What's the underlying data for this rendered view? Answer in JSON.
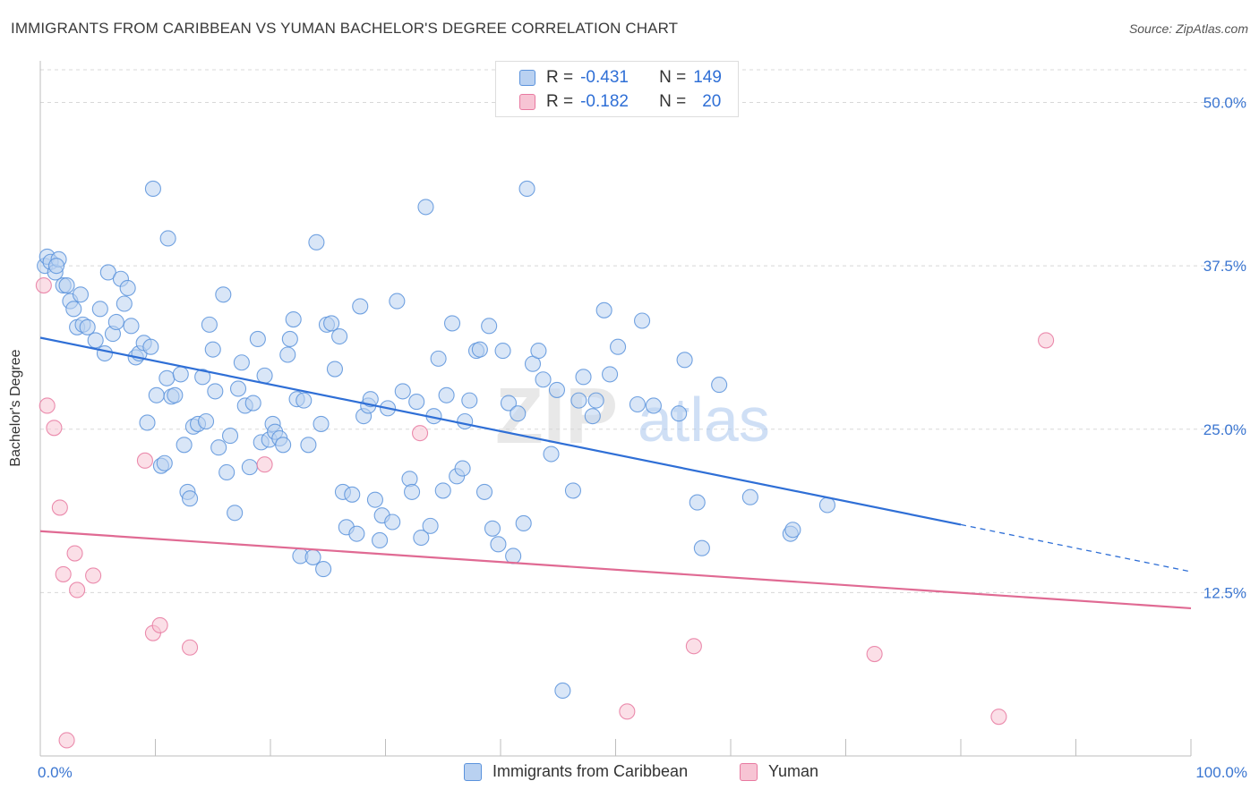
{
  "header": {
    "title": "IMMIGRANTS FROM CARIBBEAN VS YUMAN BACHELOR'S DEGREE CORRELATION CHART",
    "source": "Source: ZipAtlas.com"
  },
  "legend": {
    "rows": [
      {
        "r_label": "R =",
        "r_value": "-0.431",
        "n_label": "N =",
        "n_value": "149"
      },
      {
        "r_label": "R =",
        "r_value": "-0.182",
        "n_label": "N =",
        "n_value": "20"
      }
    ]
  },
  "watermark": {
    "zip": "ZIP",
    "atlas": "atlas"
  },
  "colors": {
    "blue": "#5b93dc",
    "blue_fill": "#b9d1f1",
    "blue_line": "#2f6fd6",
    "pink": "#e879a0",
    "pink_fill": "#f7c4d4",
    "pink_line": "#e06a93",
    "axis_label": "#3b76d1",
    "grid": "#d8d8d8"
  },
  "chart_data": {
    "type": "scatter",
    "title": "IMMIGRANTS FROM CARIBBEAN VS YUMAN BACHELOR'S DEGREE CORRELATION CHART",
    "xlabel": "",
    "ylabel": "Bachelor's Degree",
    "xlim": [
      0,
      100
    ],
    "ylim": [
      0,
      52.5
    ],
    "x_tick_labels": [
      "0.0%",
      "100.0%"
    ],
    "y_ticks": [
      12.5,
      25.0,
      37.5,
      50.0
    ],
    "y_tick_labels": [
      "12.5%",
      "25.0%",
      "37.5%",
      "50.0%"
    ],
    "grid": true,
    "legend_position": "top-center",
    "series": [
      {
        "name": "Immigrants from Caribbean",
        "color": "#5b93dc",
        "trend": {
          "x": [
            0,
            80
          ],
          "y": [
            32.0,
            17.7
          ],
          "dashed_to": [
            100,
            14.1
          ]
        },
        "points": [
          [
            0.4,
            37.5
          ],
          [
            0.6,
            38.2
          ],
          [
            0.9,
            37.8
          ],
          [
            1.3,
            37.0
          ],
          [
            1.6,
            38.0
          ],
          [
            2.0,
            36.0
          ],
          [
            2.3,
            36.0
          ],
          [
            2.6,
            34.8
          ],
          [
            2.9,
            34.2
          ],
          [
            3.2,
            32.8
          ],
          [
            3.5,
            35.3
          ],
          [
            3.7,
            33.0
          ],
          [
            4.1,
            32.8
          ],
          [
            4.8,
            31.8
          ],
          [
            5.2,
            34.2
          ],
          [
            5.6,
            30.8
          ],
          [
            5.9,
            37.0
          ],
          [
            6.3,
            32.3
          ],
          [
            6.6,
            33.2
          ],
          [
            7.0,
            36.5
          ],
          [
            7.3,
            34.6
          ],
          [
            7.6,
            35.8
          ],
          [
            7.9,
            32.9
          ],
          [
            8.3,
            30.5
          ],
          [
            8.6,
            30.8
          ],
          [
            9.0,
            31.6
          ],
          [
            9.3,
            25.5
          ],
          [
            9.6,
            31.3
          ],
          [
            10.1,
            27.6
          ],
          [
            10.5,
            22.2
          ],
          [
            10.8,
            22.4
          ],
          [
            11.0,
            28.9
          ],
          [
            11.4,
            27.5
          ],
          [
            11.7,
            27.6
          ],
          [
            12.2,
            29.2
          ],
          [
            12.5,
            23.8
          ],
          [
            12.8,
            20.2
          ],
          [
            13.0,
            19.7
          ],
          [
            13.3,
            25.2
          ],
          [
            13.7,
            25.4
          ],
          [
            14.1,
            29.0
          ],
          [
            14.4,
            25.6
          ],
          [
            14.7,
            33.0
          ],
          [
            15.0,
            31.1
          ],
          [
            15.2,
            27.9
          ],
          [
            15.5,
            23.6
          ],
          [
            15.9,
            35.3
          ],
          [
            16.2,
            21.7
          ],
          [
            16.5,
            24.5
          ],
          [
            16.9,
            18.6
          ],
          [
            17.2,
            28.1
          ],
          [
            17.5,
            30.1
          ],
          [
            17.8,
            26.8
          ],
          [
            18.2,
            22.1
          ],
          [
            18.5,
            27.0
          ],
          [
            18.9,
            31.9
          ],
          [
            19.2,
            24.0
          ],
          [
            19.5,
            29.1
          ],
          [
            19.9,
            24.2
          ],
          [
            20.2,
            25.4
          ],
          [
            20.4,
            24.8
          ],
          [
            20.8,
            24.3
          ],
          [
            21.1,
            23.8
          ],
          [
            21.5,
            30.7
          ],
          [
            21.7,
            31.9
          ],
          [
            22.0,
            33.4
          ],
          [
            22.3,
            27.3
          ],
          [
            22.6,
            15.3
          ],
          [
            22.9,
            27.2
          ],
          [
            23.3,
            23.8
          ],
          [
            23.7,
            15.2
          ],
          [
            24.0,
            39.3
          ],
          [
            24.4,
            25.4
          ],
          [
            24.6,
            14.3
          ],
          [
            24.9,
            33.0
          ],
          [
            25.3,
            33.1
          ],
          [
            25.6,
            29.6
          ],
          [
            26.0,
            32.1
          ],
          [
            26.3,
            20.2
          ],
          [
            26.6,
            17.5
          ],
          [
            27.1,
            20.0
          ],
          [
            27.5,
            17.0
          ],
          [
            27.8,
            34.4
          ],
          [
            28.1,
            26.0
          ],
          [
            28.5,
            26.8
          ],
          [
            28.7,
            27.3
          ],
          [
            29.1,
            19.6
          ],
          [
            29.5,
            16.5
          ],
          [
            29.7,
            18.4
          ],
          [
            30.2,
            26.6
          ],
          [
            30.6,
            17.9
          ],
          [
            31.0,
            34.8
          ],
          [
            31.5,
            27.9
          ],
          [
            32.1,
            21.2
          ],
          [
            32.3,
            20.2
          ],
          [
            32.7,
            27.1
          ],
          [
            33.1,
            16.7
          ],
          [
            33.5,
            42.0
          ],
          [
            33.9,
            17.6
          ],
          [
            34.2,
            26.0
          ],
          [
            34.6,
            30.4
          ],
          [
            35.0,
            20.3
          ],
          [
            35.3,
            27.6
          ],
          [
            35.8,
            33.1
          ],
          [
            36.2,
            21.4
          ],
          [
            36.7,
            22.0
          ],
          [
            36.9,
            25.6
          ],
          [
            37.3,
            27.2
          ],
          [
            37.9,
            31.0
          ],
          [
            38.2,
            31.1
          ],
          [
            38.6,
            20.2
          ],
          [
            39.0,
            32.9
          ],
          [
            39.3,
            17.4
          ],
          [
            39.8,
            16.2
          ],
          [
            40.2,
            31.0
          ],
          [
            40.7,
            27.0
          ],
          [
            41.1,
            15.3
          ],
          [
            41.5,
            26.2
          ],
          [
            42.0,
            17.8
          ],
          [
            42.3,
            43.4
          ],
          [
            42.8,
            30.0
          ],
          [
            43.3,
            31.0
          ],
          [
            43.7,
            28.8
          ],
          [
            44.4,
            23.1
          ],
          [
            44.9,
            28.0
          ],
          [
            45.4,
            5.0
          ],
          [
            46.3,
            20.3
          ],
          [
            46.8,
            27.2
          ],
          [
            47.2,
            29.0
          ],
          [
            48.0,
            26.0
          ],
          [
            48.3,
            27.2
          ],
          [
            49.0,
            34.1
          ],
          [
            49.5,
            29.2
          ],
          [
            50.2,
            31.3
          ],
          [
            51.9,
            26.9
          ],
          [
            52.3,
            33.3
          ],
          [
            53.3,
            26.8
          ],
          [
            55.5,
            26.2
          ],
          [
            56.0,
            30.3
          ],
          [
            57.1,
            19.4
          ],
          [
            57.5,
            15.9
          ],
          [
            59.0,
            28.4
          ],
          [
            61.7,
            19.8
          ],
          [
            65.2,
            17.0
          ],
          [
            65.4,
            17.3
          ],
          [
            68.4,
            19.2
          ],
          [
            9.8,
            43.4
          ],
          [
            11.1,
            39.6
          ],
          [
            1.4,
            37.5
          ]
        ]
      },
      {
        "name": "Yuman",
        "color": "#e879a0",
        "trend": {
          "x": [
            0,
            100
          ],
          "y": [
            17.2,
            11.3
          ]
        },
        "points": [
          [
            0.3,
            36.0
          ],
          [
            0.6,
            26.8
          ],
          [
            1.2,
            25.1
          ],
          [
            1.7,
            19.0
          ],
          [
            2.0,
            13.9
          ],
          [
            2.3,
            1.2
          ],
          [
            3.0,
            15.5
          ],
          [
            3.2,
            12.7
          ],
          [
            4.6,
            13.8
          ],
          [
            9.1,
            22.6
          ],
          [
            9.8,
            9.4
          ],
          [
            10.4,
            10.0
          ],
          [
            13.0,
            8.3
          ],
          [
            19.5,
            22.3
          ],
          [
            33.0,
            24.7
          ],
          [
            51.0,
            3.4
          ],
          [
            56.8,
            8.4
          ],
          [
            72.5,
            7.8
          ],
          [
            83.3,
            3.0
          ],
          [
            87.4,
            31.8
          ]
        ]
      }
    ]
  },
  "bottom_legend": {
    "items": [
      "Immigrants from Caribbean",
      "Yuman"
    ]
  }
}
